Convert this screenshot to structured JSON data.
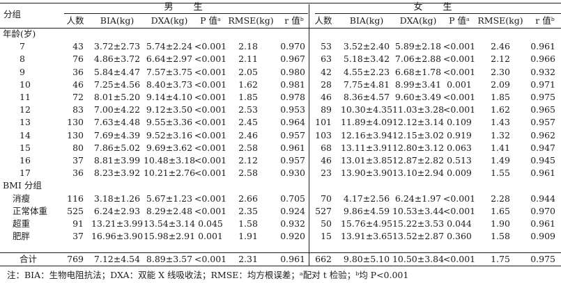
{
  "header": {
    "group_label": "分组",
    "male_label": "男　生",
    "female_label": "女　生",
    "columns": [
      "人数",
      "BIA(kg)",
      "DXA(kg)",
      "P 值ᵃ",
      "RMSE(kg)",
      "r 值ᵇ"
    ]
  },
  "sections": [
    {
      "title": "年龄(岁)",
      "rows": [
        {
          "label": "7",
          "male": [
            "43",
            "3.72±2.73",
            "5.74±2.24",
            "<0.001",
            "2.18",
            "0.970"
          ],
          "female": [
            "53",
            "3.52±2.40",
            "5.89±2.18",
            "<0.001",
            "2.46",
            "0.961"
          ]
        },
        {
          "label": "8",
          "male": [
            "76",
            "4.86±3.72",
            "6.64±2.97",
            "<0.001",
            "2.11",
            "0.967"
          ],
          "female": [
            "63",
            "5.18±3.42",
            "7.06±2.88",
            "<0.001",
            "2.12",
            "0.966"
          ]
        },
        {
          "label": "9",
          "male": [
            "36",
            "5.84±4.47",
            "7.57±3.75",
            "<0.001",
            "2.05",
            "0.980"
          ],
          "female": [
            "42",
            "4.55±2.23",
            "6.68±1.78",
            "<0.001",
            "2.30",
            "0.932"
          ]
        },
        {
          "label": "10",
          "male": [
            "46",
            "7.25±4.56",
            "8.40±3.73",
            "<0.001",
            "1.62",
            "0.981"
          ],
          "female": [
            "28",
            "7.75±4.81",
            "8.99±3.41",
            "0.001",
            "2.09",
            "0.971"
          ]
        },
        {
          "label": "11",
          "male": [
            "72",
            "8.01±5.20",
            "9.14±4.10",
            "<0.001",
            "1.85",
            "0.978"
          ],
          "female": [
            "46",
            "8.36±4.57",
            "9.60±3.49",
            "<0.001",
            "1.85",
            "0.975"
          ]
        },
        {
          "label": "12",
          "male": [
            "83",
            "7.00±4.22",
            "9.12±3.50",
            "<0.001",
            "2.53",
            "0.953"
          ],
          "female": [
            "89",
            "10.30±4.35",
            "11.03±3.28",
            "<0.001",
            "1.62",
            "0.965"
          ]
        },
        {
          "label": "13",
          "male": [
            "130",
            "7.63±4.48",
            "9.55±3.36",
            "<0.001",
            "2.45",
            "0.964"
          ],
          "female": [
            "101",
            "11.89±4.09",
            "12.12±3.14",
            "0.109",
            "1.43",
            "0.957"
          ]
        },
        {
          "label": "14",
          "male": [
            "130",
            "7.69±4.39",
            "9.52±3.16",
            "<0.001",
            "2.46",
            "0.957"
          ],
          "female": [
            "103",
            "12.16±3.94",
            "12.15±3.02",
            "0.919",
            "1.32",
            "0.962"
          ]
        },
        {
          "label": "15",
          "male": [
            "80",
            "7.86±5.02",
            "9.69±3.62",
            "<0.001",
            "2.58",
            "0.961"
          ],
          "female": [
            "68",
            "13.11±3.91",
            "12.80±3.12",
            "0.063",
            "1.41",
            "0.947"
          ]
        },
        {
          "label": "16",
          "male": [
            "37",
            "8.81±3.99",
            "10.48±3.18",
            "<0.001",
            "2.12",
            "0.957"
          ],
          "female": [
            "46",
            "13.01±3.85",
            "12.87±2.82",
            "0.513",
            "1.49",
            "0.945"
          ]
        },
        {
          "label": "17",
          "male": [
            "36",
            "8.23±3.92",
            "10.21±2.76",
            "<0.001",
            "2.58",
            "0.930"
          ],
          "female": [
            "23",
            "13.90±3.90",
            "13.10±2.94",
            "0.009",
            "1.55",
            "0.961"
          ]
        }
      ]
    },
    {
      "title": "BMI 分组",
      "rows": [
        {
          "label": "消瘦",
          "male": [
            "116",
            "3.18±1.26",
            "5.67±1.23",
            "<0.001",
            "2.66",
            "0.705"
          ],
          "female": [
            "70",
            "4.17±2.56",
            "6.24±1.97",
            "<0.001",
            "2.28",
            "0.944"
          ]
        },
        {
          "label": "正常体重",
          "male": [
            "525",
            "6.24±2.93",
            "8.29±2.48",
            "<0.001",
            "2.35",
            "0.924"
          ],
          "female": [
            "527",
            "9.86±4.59",
            "10.53±3.44",
            "<0.001",
            "1.65",
            "0.970"
          ]
        },
        {
          "label": "超重",
          "male": [
            "91",
            "13.21±3.99",
            "13.54±3.14",
            "0.045",
            "1.58",
            "0.932"
          ],
          "female": [
            "50",
            "15.76±4.95",
            "15.22±3.53",
            "0.044",
            "1.90",
            "0.961"
          ]
        },
        {
          "label": "肥胖",
          "male": [
            "37",
            "16.96±3.90",
            "15.98±2.91",
            "0.001",
            "1.91",
            "0.920"
          ],
          "female": [
            "15",
            "13.91±3.65",
            "13.52±2.87",
            "0.360",
            "1.58",
            "0.909"
          ]
        }
      ]
    }
  ],
  "total": {
    "label": "合计",
    "male": [
      "769",
      "7.12±4.54",
      "8.89±3.57",
      "<0.001",
      "2.31",
      "0.961"
    ],
    "female": [
      "662",
      "9.80±5.10",
      "10.50±3.84",
      "<0.001",
      "1.75",
      "0.975"
    ]
  },
  "note": "注：BIA：生物电阻抗法；DXA：双能 X 线吸收法；RMSE：均方根误差；ᵃ配对 t 检验；ᵇ均 P<0.001"
}
